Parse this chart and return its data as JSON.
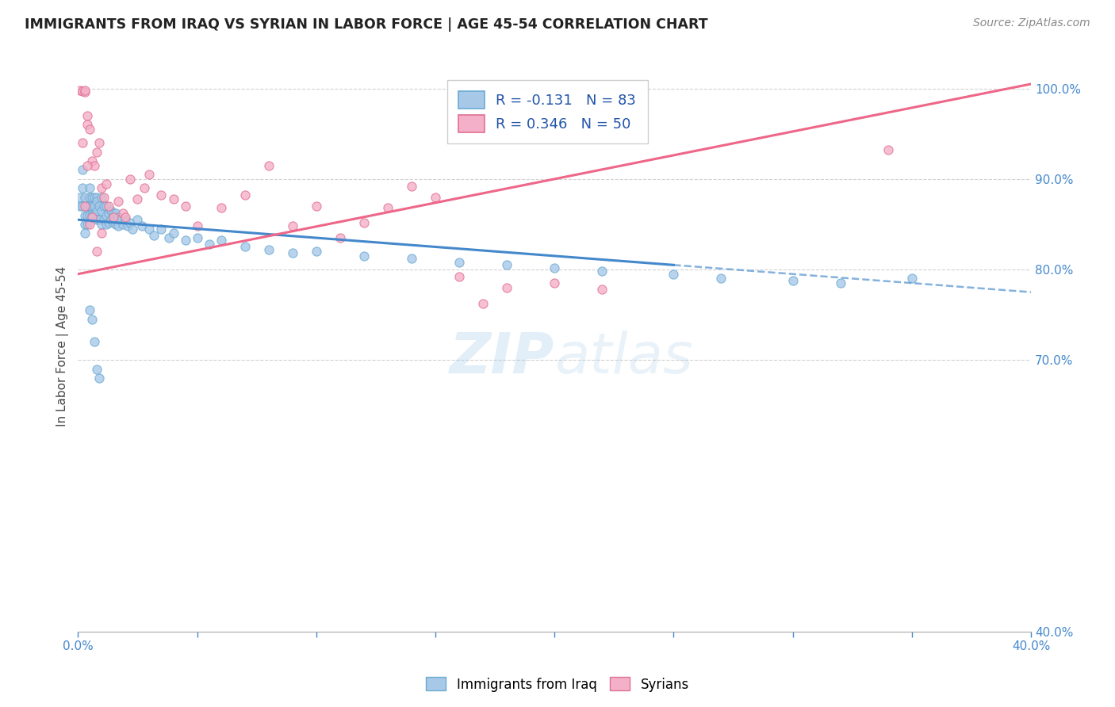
{
  "title": "IMMIGRANTS FROM IRAQ VS SYRIAN IN LABOR FORCE | AGE 45-54 CORRELATION CHART",
  "source": "Source: ZipAtlas.com",
  "ylabel": "In Labor Force | Age 45-54",
  "x_min": 0.0,
  "x_max": 0.4,
  "y_min": 0.4,
  "y_max": 1.03,
  "iraq_color": "#a8c8e8",
  "iraq_edge": "#6aaad4",
  "syria_color": "#f4b0c8",
  "syria_edge": "#e07090",
  "iraq_line_color": "#4488cc",
  "syria_line_color": "#ee6688",
  "legend_iraq_R": "-0.131",
  "legend_iraq_N": "83",
  "legend_syria_R": "0.346",
  "legend_syria_N": "50",
  "watermark": "ZIPatlas",
  "iraq_line_x0": 0.0,
  "iraq_line_y0": 0.855,
  "iraq_line_x1": 0.4,
  "iraq_line_y1": 0.775,
  "iraq_line_solid_end": 0.25,
  "syria_line_x0": 0.0,
  "syria_line_y0": 0.795,
  "syria_line_x1": 0.4,
  "syria_line_y1": 1.005,
  "iraq_x": [
    0.001,
    0.001,
    0.002,
    0.002,
    0.002,
    0.003,
    0.003,
    0.003,
    0.003,
    0.004,
    0.004,
    0.004,
    0.005,
    0.005,
    0.005,
    0.005,
    0.006,
    0.006,
    0.006,
    0.007,
    0.007,
    0.007,
    0.008,
    0.008,
    0.008,
    0.008,
    0.009,
    0.009,
    0.01,
    0.01,
    0.01,
    0.011,
    0.011,
    0.012,
    0.012,
    0.012,
    0.013,
    0.013,
    0.014,
    0.014,
    0.015,
    0.015,
    0.016,
    0.016,
    0.017,
    0.017,
    0.018,
    0.019,
    0.02,
    0.021,
    0.022,
    0.023,
    0.025,
    0.027,
    0.03,
    0.032,
    0.035,
    0.038,
    0.04,
    0.045,
    0.05,
    0.055,
    0.06,
    0.07,
    0.08,
    0.09,
    0.1,
    0.12,
    0.14,
    0.16,
    0.18,
    0.2,
    0.22,
    0.25,
    0.27,
    0.3,
    0.32,
    0.35,
    0.005,
    0.006,
    0.007,
    0.008,
    0.009
  ],
  "iraq_y": [
    0.88,
    0.87,
    0.91,
    0.89,
    0.87,
    0.88,
    0.86,
    0.85,
    0.84,
    0.87,
    0.86,
    0.85,
    0.89,
    0.88,
    0.87,
    0.86,
    0.88,
    0.87,
    0.86,
    0.88,
    0.87,
    0.86,
    0.88,
    0.875,
    0.865,
    0.855,
    0.87,
    0.855,
    0.88,
    0.865,
    0.85,
    0.87,
    0.855,
    0.87,
    0.86,
    0.85,
    0.862,
    0.852,
    0.865,
    0.855,
    0.862,
    0.852,
    0.862,
    0.85,
    0.858,
    0.848,
    0.855,
    0.85,
    0.855,
    0.848,
    0.852,
    0.845,
    0.855,
    0.848,
    0.845,
    0.838,
    0.845,
    0.835,
    0.84,
    0.832,
    0.835,
    0.828,
    0.832,
    0.825,
    0.822,
    0.818,
    0.82,
    0.815,
    0.812,
    0.808,
    0.805,
    0.802,
    0.798,
    0.795,
    0.79,
    0.788,
    0.785,
    0.79,
    0.755,
    0.745,
    0.72,
    0.69,
    0.68
  ],
  "syria_x": [
    0.001,
    0.002,
    0.003,
    0.003,
    0.004,
    0.004,
    0.005,
    0.006,
    0.007,
    0.008,
    0.009,
    0.01,
    0.011,
    0.012,
    0.013,
    0.015,
    0.017,
    0.019,
    0.02,
    0.022,
    0.025,
    0.028,
    0.03,
    0.035,
    0.04,
    0.045,
    0.05,
    0.06,
    0.07,
    0.08,
    0.09,
    0.1,
    0.11,
    0.12,
    0.13,
    0.14,
    0.15,
    0.16,
    0.17,
    0.002,
    0.003,
    0.004,
    0.005,
    0.006,
    0.18,
    0.2,
    0.22,
    0.008,
    0.01,
    0.34
  ],
  "syria_y": [
    0.998,
    0.997,
    0.996,
    0.998,
    0.97,
    0.96,
    0.955,
    0.92,
    0.915,
    0.93,
    0.94,
    0.89,
    0.88,
    0.895,
    0.87,
    0.858,
    0.875,
    0.862,
    0.858,
    0.9,
    0.878,
    0.89,
    0.905,
    0.882,
    0.878,
    0.87,
    0.848,
    0.868,
    0.882,
    0.915,
    0.848,
    0.87,
    0.835,
    0.852,
    0.868,
    0.892,
    0.88,
    0.792,
    0.762,
    0.94,
    0.87,
    0.915,
    0.85,
    0.858,
    0.78,
    0.785,
    0.778,
    0.82,
    0.84,
    0.932
  ]
}
